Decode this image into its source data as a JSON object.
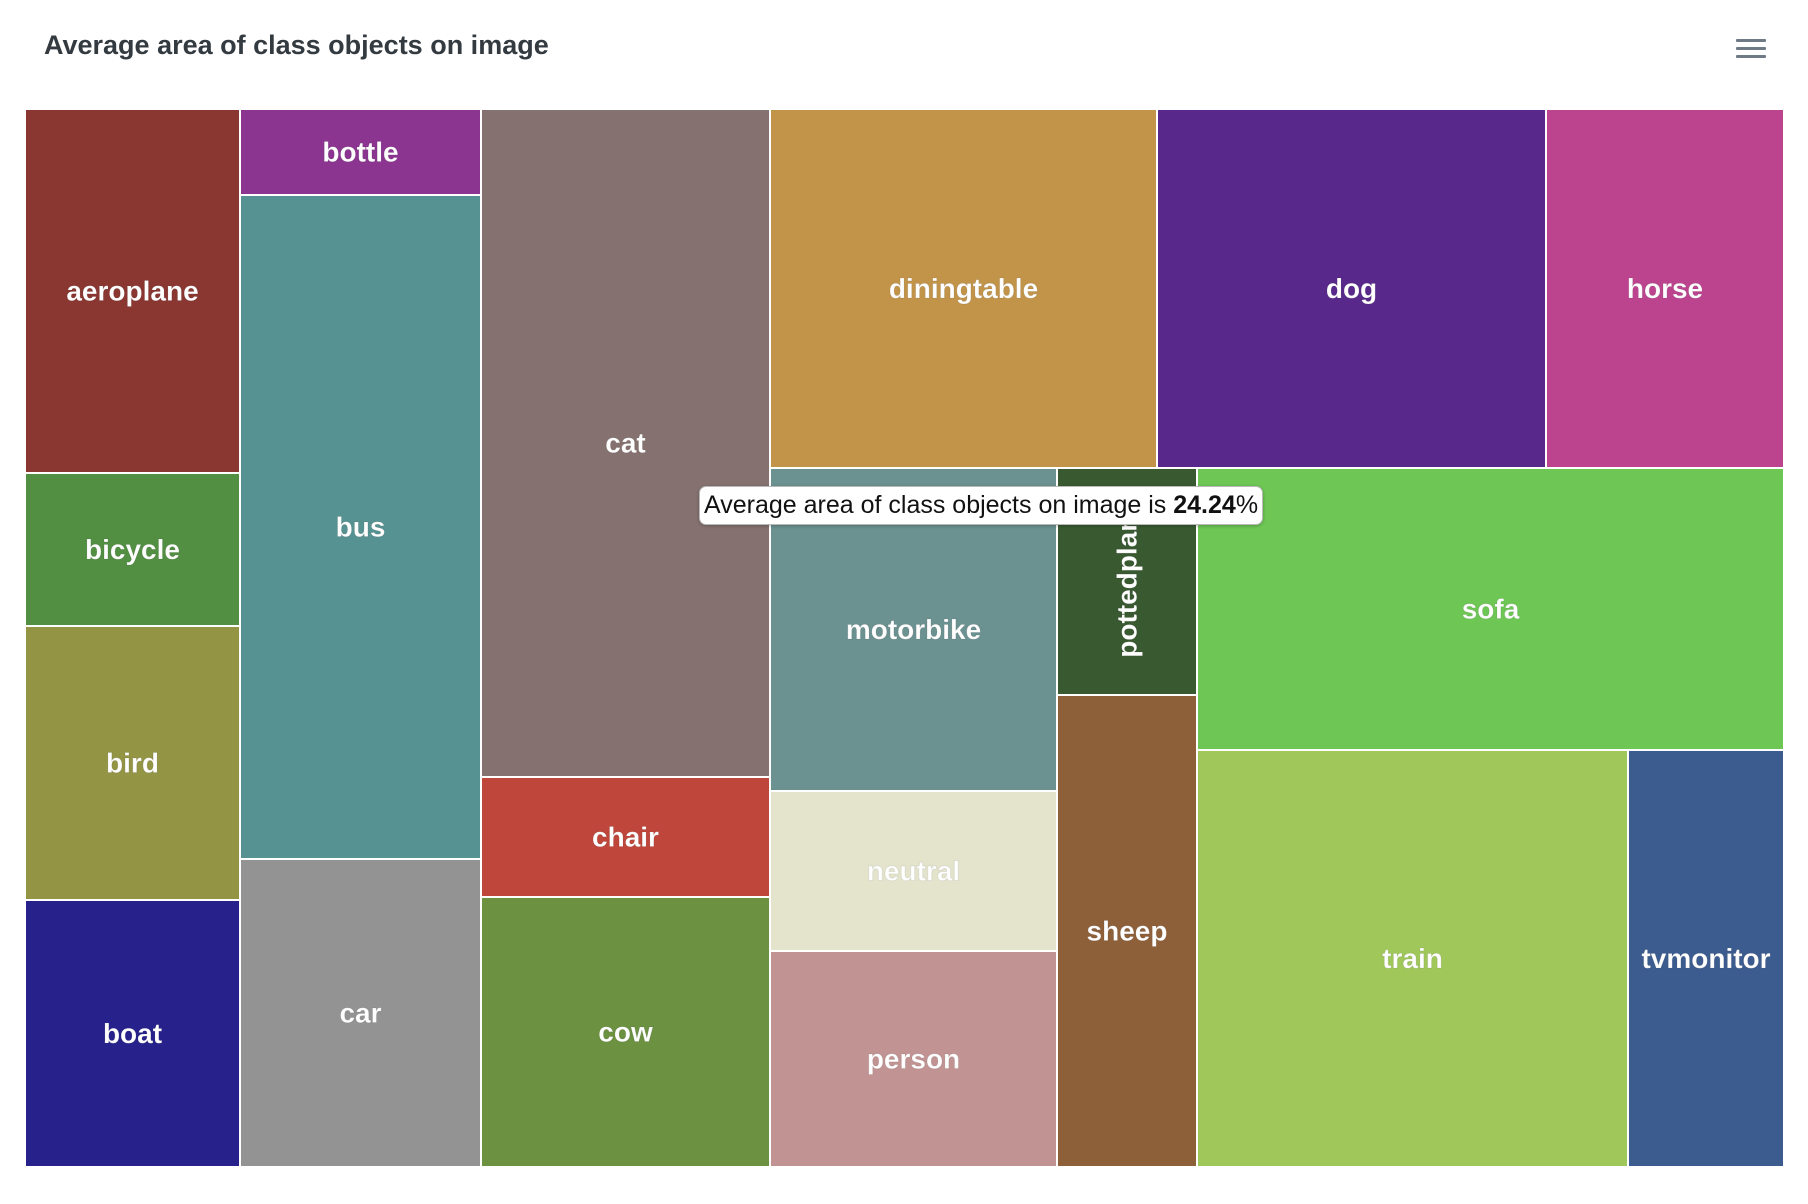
{
  "chart_title": "Average area of class objects on image",
  "menu_icon": "hamburger-menu-icon",
  "tooltip": {
    "prefix": "Average area of class objects on image is",
    "value": "24.24",
    "suffix": "%"
  },
  "chart_data": {
    "type": "treemap",
    "title": "Average area of class objects on image",
    "items": [
      {
        "name": "aeroplane",
        "color": "#8a3631"
      },
      {
        "name": "bicycle",
        "color": "#528f43"
      },
      {
        "name": "bird",
        "color": "#939444"
      },
      {
        "name": "boat",
        "color": "#27228b"
      },
      {
        "name": "bottle",
        "color": "#8b3590"
      },
      {
        "name": "bus",
        "color": "#569292"
      },
      {
        "name": "car",
        "color": "#939393"
      },
      {
        "name": "cat",
        "color": "#857270"
      },
      {
        "name": "chair",
        "color": "#bf463b"
      },
      {
        "name": "cow",
        "color": "#6b9141"
      },
      {
        "name": "diningtable",
        "color": "#c2944a"
      },
      {
        "name": "dog",
        "color": "#58298b"
      },
      {
        "name": "horse",
        "color": "#bc448f"
      },
      {
        "name": "motorbike",
        "color": "#6b9191"
      },
      {
        "name": "neutral",
        "color": "#e4e4cd"
      },
      {
        "name": "person",
        "color": "#c29393"
      },
      {
        "name": "pottedplant",
        "color": "#395a31"
      },
      {
        "name": "sheep",
        "color": "#8e603a"
      },
      {
        "name": "sofa",
        "color": "#6ec655"
      },
      {
        "name": "train",
        "color": "#a0c75a"
      },
      {
        "name": "tvmonitor",
        "color": "#3c5c90"
      }
    ]
  }
}
